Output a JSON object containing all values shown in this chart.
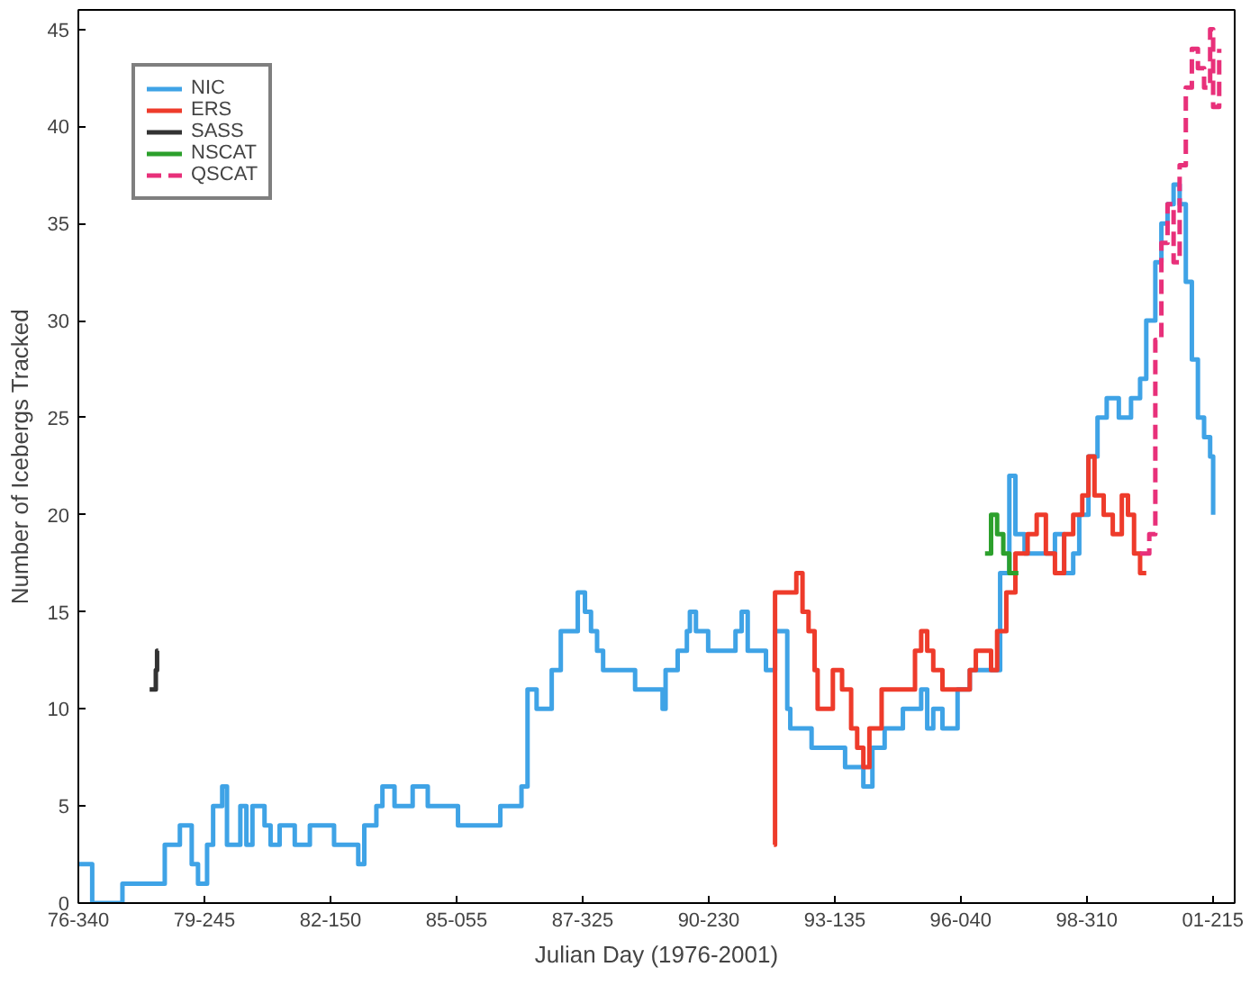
{
  "chart_data": {
    "type": "step",
    "xlabel": "Julian Day (1976-2001)",
    "ylabel": "Number of Icebergs Tracked",
    "xlim": [
      "1976-12-05",
      "2002-01-23"
    ],
    "ylim": [
      0,
      46
    ],
    "xticks": [
      {
        "value": "1976-12-05",
        "label": "76-340"
      },
      {
        "value": "1979-09-02",
        "label": "79-245"
      },
      {
        "value": "1982-05-30",
        "label": "82-150"
      },
      {
        "value": "1985-02-24",
        "label": "85-055"
      },
      {
        "value": "1987-11-21",
        "label": "87-325"
      },
      {
        "value": "1990-08-18",
        "label": "90-230"
      },
      {
        "value": "1993-05-15",
        "label": "93-135"
      },
      {
        "value": "1996-02-09",
        "label": "96-040"
      },
      {
        "value": "1998-11-06",
        "label": "98-310"
      },
      {
        "value": "2001-08-03",
        "label": "01-215"
      }
    ],
    "yticks": [
      0,
      5,
      10,
      15,
      20,
      25,
      30,
      35,
      40,
      45
    ],
    "grid": false,
    "legend": "top left",
    "series": [
      {
        "name": "NIC",
        "color": "#3fa3e6",
        "x": [
          "1976-12-05",
          "1977-03-25",
          "1977-11-20",
          "1978-10-22",
          "1979-02-19",
          "1979-05-24",
          "1979-07-13",
          "1979-09-23",
          "1979-11-10",
          "1980-01-21",
          "1980-02-28",
          "1980-06-13",
          "1980-07-31",
          "1980-09-17",
          "1980-12-22",
          "1981-02-08",
          "1981-04-21",
          "1981-08-19",
          "1981-12-17",
          "1982-06-27",
          "1983-01-05",
          "1983-02-22",
          "1983-05-29",
          "1983-07-16",
          "1983-10-20",
          "1984-03-12",
          "1984-07-10",
          "1985-03-07",
          "1986-02-06",
          "1986-07-24",
          "1986-09-10",
          "1986-11-21",
          "1987-03-21",
          "1987-06-01",
          "1987-10-14",
          "1987-12-10",
          "1988-01-27",
          "1988-03-15",
          "1988-05-02",
          "1989-01-11",
          "1989-08-17",
          "1989-09-10",
          "1989-12-15",
          "1990-02-26",
          "1990-03-22",
          "1990-05-09",
          "1990-08-14",
          "1991-03-19",
          "1991-05-07",
          "1991-06-24",
          "1991-11-16",
          "1992-01-27",
          "1992-05-03",
          "1992-05-27",
          "1992-11-12",
          "1993-08-05",
          "1993-12-28",
          "1994-03-10",
          "1994-06-15",
          "1994-11-07",
          "1995-04-01",
          "1995-05-19",
          "1995-07-06",
          "1995-09-17",
          "1996-01-15",
          "1996-04-21",
          "1996-08-20",
          "1996-12-18",
          "1997-03-01",
          "1997-04-18",
          "1997-06-30",
          "1997-10-04",
          "1998-02-26",
          "1998-05-10",
          "1998-07-21",
          "1998-09-07",
          "1998-11-19",
          "1999-01-30",
          "1999-04-13",
          "1999-07-18",
          "1999-10-23",
          "2000-01-03",
          "2000-02-21",
          "2000-05-03",
          "2000-06-20",
          "2000-08-08",
          "2000-09-25",
          "2000-11-12",
          "2000-12-31",
          "2001-02-17",
          "2001-04-06",
          "2001-05-25",
          "2001-07-12",
          "2001-08-05"
        ],
        "values": [
          2,
          0,
          1,
          3,
          4,
          2,
          1,
          3,
          5,
          6,
          3,
          5,
          3,
          5,
          4,
          3,
          4,
          3,
          4,
          3,
          2,
          4,
          5,
          6,
          5,
          6,
          5,
          4,
          5,
          6,
          11,
          10,
          12,
          14,
          16,
          15,
          14,
          13,
          12,
          11,
          10,
          12,
          13,
          14,
          15,
          14,
          13,
          14,
          15,
          13,
          12,
          14,
          10,
          9,
          8,
          7,
          6,
          8,
          9,
          10,
          11,
          9,
          10,
          9,
          11,
          12,
          12,
          17,
          22,
          19,
          18,
          18,
          19,
          17,
          18,
          20,
          23,
          25,
          26,
          25,
          26,
          27,
          30,
          33,
          35,
          36,
          37,
          36,
          32,
          28,
          25,
          24,
          23,
          20
        ]
      },
      {
        "name": "ERS",
        "color": "#ee3b2b",
        "x": [
          "1992-01-18",
          "1992-01-27",
          "1992-07-14",
          "1992-09-01",
          "1992-10-19",
          "1992-12-06",
          "1992-12-30",
          "1993-04-30",
          "1993-07-12",
          "1993-09-22",
          "1993-11-09",
          "1993-12-28",
          "1994-02-14",
          "1994-05-22",
          "1995-02-11",
          "1995-04-01",
          "1995-05-19",
          "1995-07-06",
          "1995-09-17",
          "1996-04-21",
          "1996-06-08",
          "1996-10-07",
          "1996-11-24",
          "1997-02-05",
          "1997-04-18",
          "1997-07-24",
          "1997-10-04",
          "1997-12-16",
          "1998-02-26",
          "1998-05-10",
          "1998-07-21",
          "1998-10-01",
          "1998-11-19",
          "1999-01-06",
          "1999-03-20",
          "1999-05-31",
          "1999-08-11",
          "1999-09-29",
          "1999-11-16",
          "2000-01-03",
          "2000-02-21"
        ],
        "values": [
          3,
          16,
          17,
          15,
          14,
          12,
          10,
          12,
          11,
          9,
          8,
          7,
          9,
          11,
          13,
          14,
          13,
          12,
          11,
          12,
          13,
          12,
          14,
          16,
          18,
          19,
          20,
          18,
          17,
          19,
          20,
          21,
          23,
          21,
          20,
          19,
          21,
          20,
          18,
          17,
          17
        ]
      },
      {
        "name": "SASS",
        "color": "#333333",
        "x": [
          "1978-06-24",
          "1978-08-07",
          "1978-08-12",
          "1978-08-22",
          "1978-08-31"
        ],
        "values": [
          11,
          11,
          12,
          13,
          13
        ]
      },
      {
        "name": "NSCAT",
        "color": "#2ca02c",
        "x": [
          "1996-08-20",
          "1996-10-07",
          "1996-11-24",
          "1997-01-12",
          "1997-03-01",
          "1997-04-18",
          "1997-05-12"
        ],
        "values": [
          18,
          20,
          19,
          18,
          17,
          17,
          17
        ]
      },
      {
        "name": "QSCAT",
        "color": "#e8307a",
        "line_style": "dashed",
        "x": [
          "2000-01-03",
          "2000-03-16",
          "2000-05-03",
          "2000-06-20",
          "2000-08-08",
          "2000-09-25",
          "2000-11-12",
          "2000-12-31",
          "2001-02-17",
          "2001-04-06",
          "2001-05-25",
          "2001-07-12",
          "2001-08-05",
          "2001-09-22"
        ],
        "values": [
          18,
          19,
          29,
          34,
          36,
          33,
          38,
          42,
          44,
          43,
          42,
          45,
          41,
          44
        ]
      }
    ]
  }
}
